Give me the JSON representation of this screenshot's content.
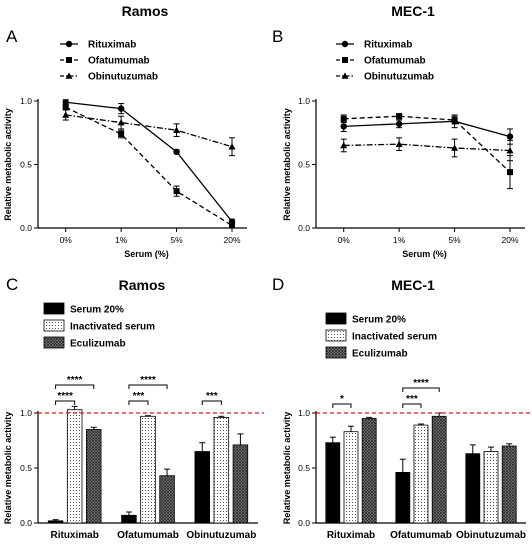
{
  "panels": {
    "A": {
      "label": "A",
      "title": "Ramos"
    },
    "B": {
      "label": "B",
      "title": "MEC-1"
    },
    "C": {
      "label": "C",
      "title": "Ramos"
    },
    "D": {
      "label": "D",
      "title": "MEC-1"
    }
  },
  "chart_data": [
    {
      "id": "A",
      "type": "line",
      "title": "Ramos",
      "xlabel": "Serum (%)",
      "ylabel": "Relative metabolic activity",
      "categories": [
        "0%",
        "1%",
        "5%",
        "20%"
      ],
      "ylim": [
        0,
        1.0
      ],
      "yticks": [
        "0.0",
        "0.5",
        "1.0"
      ],
      "legend": "top-left",
      "series": [
        {
          "name": "Rituximab",
          "marker": "circle",
          "style": "solid",
          "values": [
            0.99,
            0.94,
            0.6,
            0.05
          ],
          "errors": [
            0.02,
            0.04,
            0.015,
            0.02
          ]
        },
        {
          "name": "Ofatumumab",
          "marker": "square",
          "style": "dashed",
          "values": [
            0.95,
            0.74,
            0.29,
            0.02
          ],
          "errors": [
            0.02,
            0.03,
            0.04,
            0.01
          ]
        },
        {
          "name": "Obinutuzumab",
          "marker": "triangle",
          "style": "dashdot",
          "values": [
            0.89,
            0.83,
            0.77,
            0.64
          ],
          "errors": [
            0.04,
            0.05,
            0.05,
            0.07
          ]
        }
      ]
    },
    {
      "id": "B",
      "type": "line",
      "title": "MEC-1",
      "xlabel": "Serum (%)",
      "ylabel": "Relative metabolic activity",
      "categories": [
        "0%",
        "1%",
        "5%",
        "20%"
      ],
      "ylim": [
        0,
        1.0
      ],
      "yticks": [
        "0.0",
        "0.5",
        "1.0"
      ],
      "legend": "top-left",
      "series": [
        {
          "name": "Rituximab",
          "marker": "circle",
          "style": "solid",
          "values": [
            0.8,
            0.82,
            0.84,
            0.72
          ],
          "errors": [
            0.04,
            0.03,
            0.05,
            0.06
          ]
        },
        {
          "name": "Ofatumumab",
          "marker": "square",
          "style": "dashed",
          "values": [
            0.86,
            0.88,
            0.85,
            0.44
          ],
          "errors": [
            0.03,
            0.02,
            0.03,
            0.13
          ]
        },
        {
          "name": "Obinutuzumab",
          "marker": "triangle",
          "style": "dashdot",
          "values": [
            0.65,
            0.66,
            0.63,
            0.61
          ],
          "errors": [
            0.05,
            0.05,
            0.07,
            0.08
          ]
        }
      ]
    },
    {
      "id": "C",
      "type": "bar",
      "title": "Ramos",
      "ylabel": "Relative metabolic activity",
      "categories": [
        "Rituximab",
        "Ofatumumab",
        "Obinutuzumab"
      ],
      "ylim": [
        0,
        1.0
      ],
      "yticks": [
        "0.0",
        "0.5",
        "1.0"
      ],
      "reference_line": 1.0,
      "legend": "top-left",
      "series": [
        {
          "name": "Serum 20%",
          "fill": "black",
          "values": [
            0.02,
            0.07,
            0.65
          ],
          "errors": [
            0.01,
            0.03,
            0.08
          ]
        },
        {
          "name": "Inactivated serum",
          "fill": "dots",
          "values": [
            1.03,
            0.97,
            0.96
          ],
          "errors": [
            0.03,
            0.005,
            0.01
          ]
        },
        {
          "name": "Eculizumab",
          "fill": "crosshatch",
          "values": [
            0.85,
            0.43,
            0.71
          ],
          "errors": [
            0.02,
            0.06,
            0.1
          ]
        }
      ],
      "significance": [
        {
          "category": 0,
          "from": 0,
          "to": 2,
          "label": "****"
        },
        {
          "category": 0,
          "from": 0,
          "to": 1,
          "label": "****"
        },
        {
          "category": 1,
          "from": 0,
          "to": 2,
          "label": "****"
        },
        {
          "category": 1,
          "from": 0,
          "to": 1,
          "label": "***"
        },
        {
          "category": 2,
          "from": 0,
          "to": 1,
          "label": "***"
        }
      ]
    },
    {
      "id": "D",
      "type": "bar",
      "title": "MEC-1",
      "ylabel": "Relative metabolic activity",
      "categories": [
        "Rituximab",
        "Ofatumumab",
        "Obinutuzumab"
      ],
      "ylim": [
        0,
        1.0
      ],
      "yticks": [
        "0.0",
        "0.5",
        "1.0"
      ],
      "reference_line": 1.0,
      "legend": "top-left",
      "series": [
        {
          "name": "Serum 20%",
          "fill": "black",
          "values": [
            0.73,
            0.46,
            0.63
          ],
          "errors": [
            0.05,
            0.12,
            0.08
          ]
        },
        {
          "name": "Inactivated serum",
          "fill": "dots",
          "values": [
            0.83,
            0.89,
            0.65
          ],
          "errors": [
            0.05,
            0.01,
            0.04
          ]
        },
        {
          "name": "Eculizumab",
          "fill": "crosshatch",
          "values": [
            0.95,
            0.97,
            0.7
          ],
          "errors": [
            0.01,
            0.03,
            0.02
          ]
        }
      ],
      "significance": [
        {
          "category": 0,
          "from": 0,
          "to": 1,
          "label": "*"
        },
        {
          "category": 1,
          "from": 0,
          "to": 2,
          "label": "****"
        },
        {
          "category": 1,
          "from": 0,
          "to": 1,
          "label": "***"
        }
      ]
    }
  ]
}
